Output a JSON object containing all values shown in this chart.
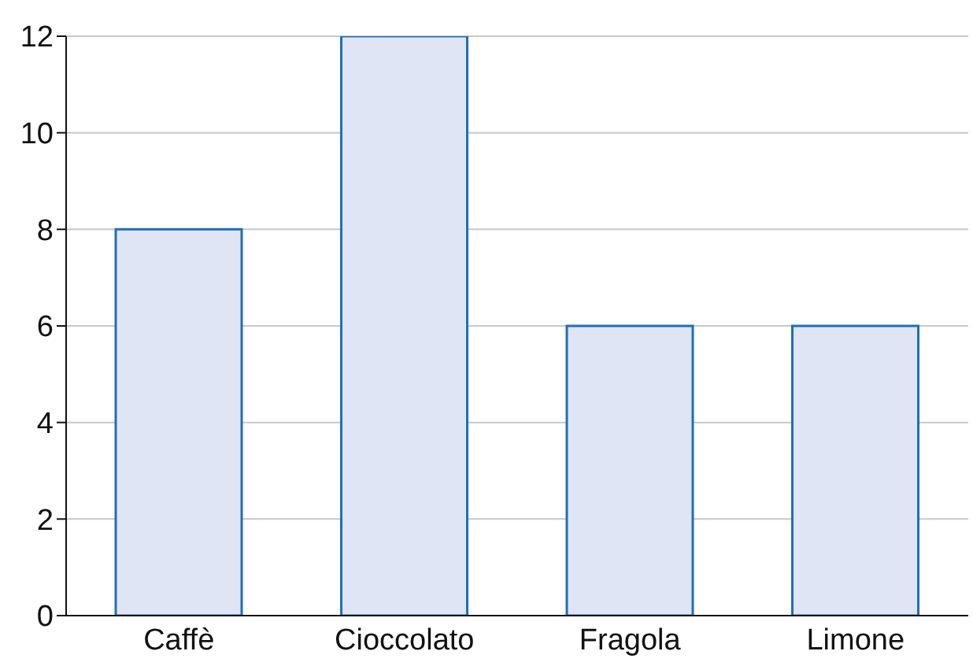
{
  "chart_data": {
    "type": "bar",
    "categories": [
      "Caffè",
      "Cioccolato",
      "Fragola",
      "Limone"
    ],
    "values": [
      8,
      12,
      6,
      6
    ],
    "color": "#dfe5f5",
    "ylim": [
      0,
      12
    ],
    "yticks": [
      0,
      2,
      4,
      6,
      8,
      10,
      12
    ],
    "grid": "y"
  }
}
